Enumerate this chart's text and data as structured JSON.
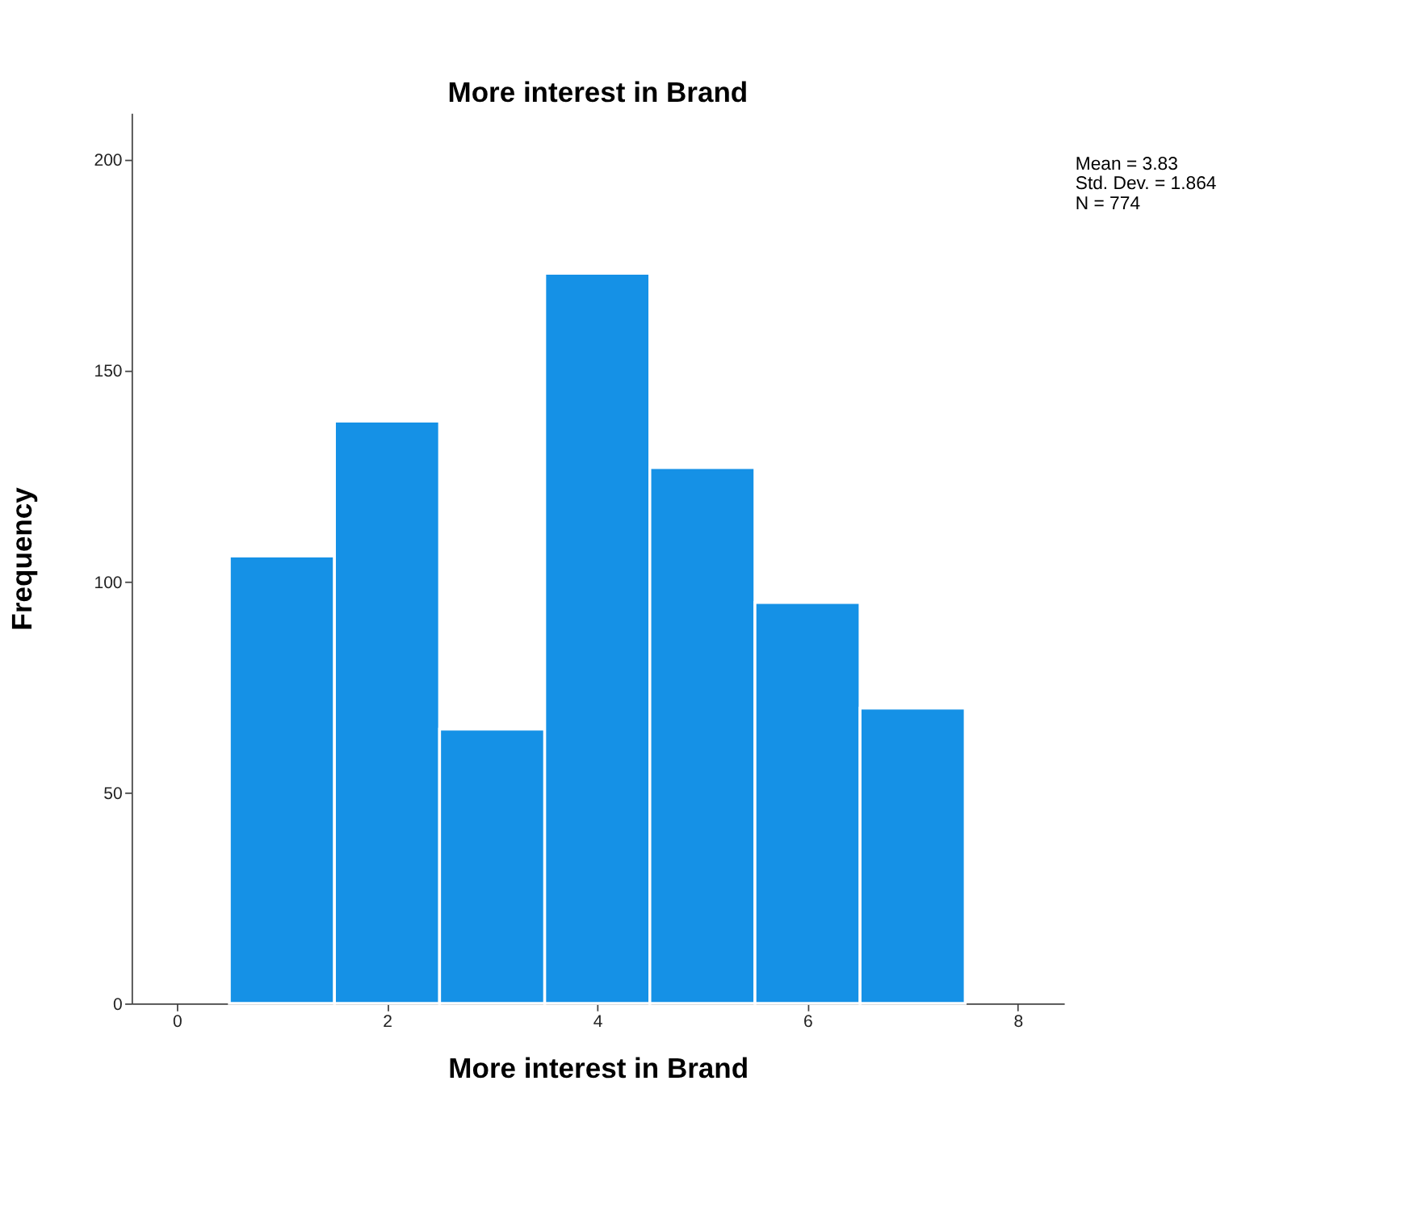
{
  "chart_data": {
    "type": "histogram",
    "title": "More interest in Brand",
    "xlabel": "More interest in Brand",
    "ylabel": "Frequency",
    "bins": [
      0.5,
      1.5,
      2.5,
      3.5,
      4.5,
      5.5,
      6.5,
      7.5
    ],
    "values": [
      106,
      138,
      65,
      173,
      127,
      95,
      70
    ],
    "color": "#1591e6",
    "xlim": [
      -0.43,
      8.44
    ],
    "xticks": [
      0,
      2,
      4,
      6,
      8
    ],
    "ylim": [
      0,
      211
    ],
    "yticks": [
      0,
      50,
      100,
      150,
      200
    ],
    "grid": false,
    "annotations": [
      "Mean = 3.83",
      "Std. Dev. = 1.864",
      "N = 774"
    ]
  }
}
